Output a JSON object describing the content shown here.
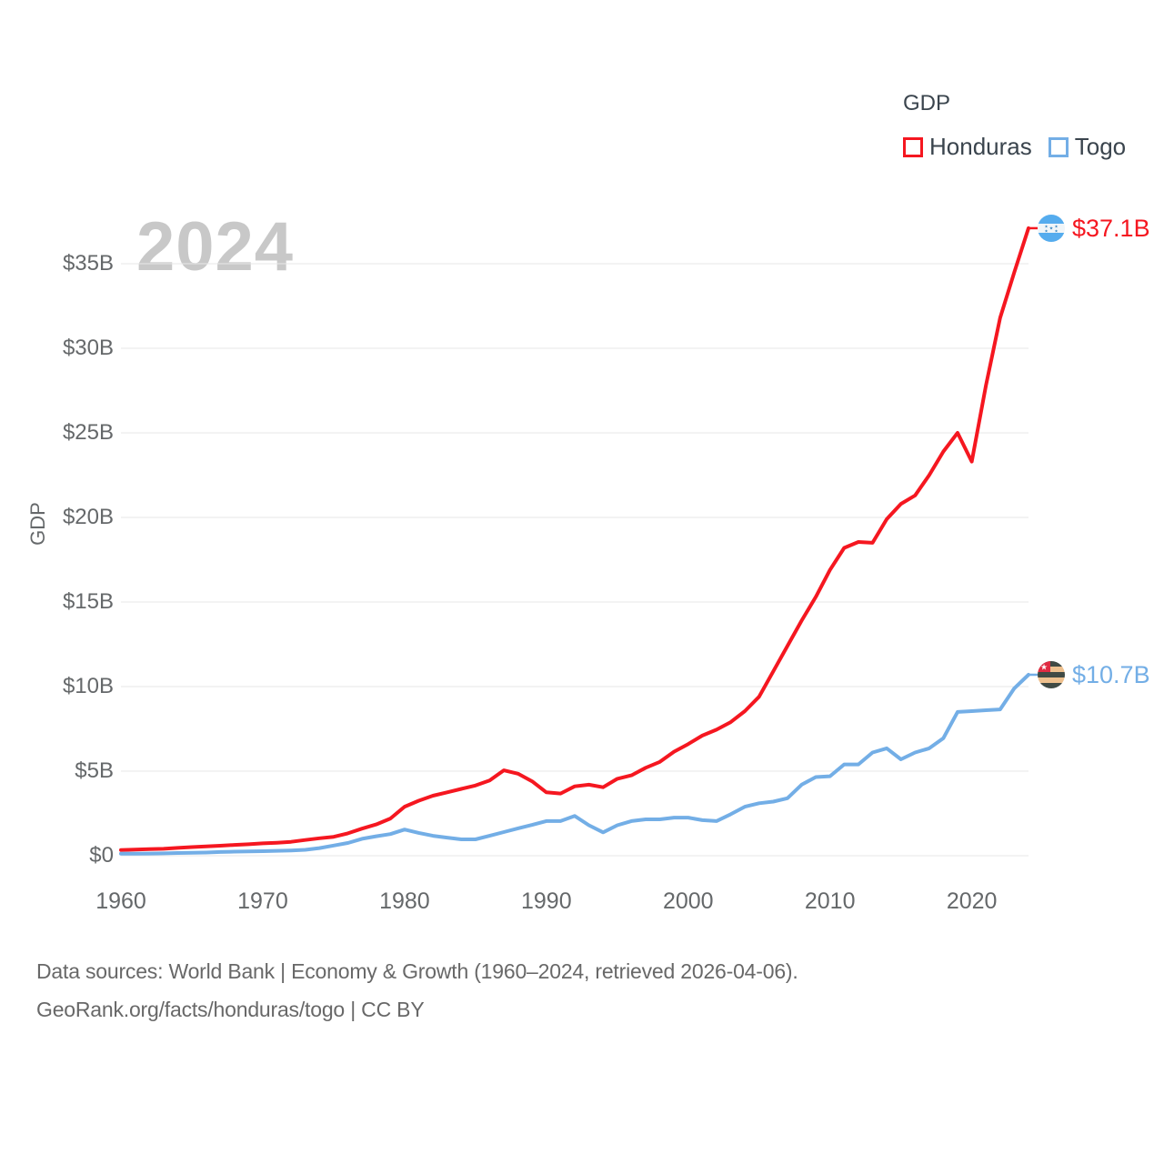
{
  "watermark_year": "2024",
  "legend": {
    "title": "GDP",
    "items": [
      {
        "label": "Honduras",
        "color": "#f51720"
      },
      {
        "label": "Togo",
        "color": "#73aee6"
      }
    ]
  },
  "chart_data": {
    "type": "line",
    "title": "GDP",
    "ylabel": "GDP",
    "xlabel": "",
    "unit": "USD billions",
    "grid": true,
    "legend_position": "top-right",
    "xlim": [
      1960,
      2024
    ],
    "ylim": [
      0,
      35
    ],
    "x_ticks": [
      1960,
      1970,
      1980,
      1990,
      2000,
      2010,
      2020
    ],
    "y_ticks": [
      {
        "value": 0,
        "label": "$0"
      },
      {
        "value": 5,
        "label": "$5B"
      },
      {
        "value": 10,
        "label": "$10B"
      },
      {
        "value": 15,
        "label": "$15B"
      },
      {
        "value": 20,
        "label": "$20B"
      },
      {
        "value": 25,
        "label": "$25B"
      },
      {
        "value": 30,
        "label": "$30B"
      },
      {
        "value": 35,
        "label": "$35B"
      }
    ],
    "years": [
      1960,
      1961,
      1962,
      1963,
      1964,
      1965,
      1966,
      1967,
      1968,
      1969,
      1970,
      1971,
      1972,
      1973,
      1974,
      1975,
      1976,
      1977,
      1978,
      1979,
      1980,
      1981,
      1982,
      1983,
      1984,
      1985,
      1986,
      1987,
      1988,
      1989,
      1990,
      1991,
      1992,
      1993,
      1994,
      1995,
      1996,
      1997,
      1998,
      1999,
      2000,
      2001,
      2002,
      2003,
      2004,
      2005,
      2006,
      2007,
      2008,
      2009,
      2010,
      2011,
      2012,
      2013,
      2014,
      2015,
      2016,
      2017,
      2018,
      2019,
      2020,
      2021,
      2022,
      2023,
      2024
    ],
    "series": [
      {
        "name": "Honduras",
        "color": "#f51720",
        "end_label": "$37.1B",
        "values": [
          0.34,
          0.36,
          0.39,
          0.41,
          0.46,
          0.51,
          0.55,
          0.59,
          0.64,
          0.68,
          0.73,
          0.77,
          0.82,
          0.93,
          1.03,
          1.12,
          1.32,
          1.6,
          1.85,
          2.2,
          2.9,
          3.25,
          3.55,
          3.75,
          3.95,
          4.15,
          4.45,
          5.05,
          4.85,
          4.4,
          3.75,
          3.68,
          4.1,
          4.2,
          4.05,
          4.55,
          4.75,
          5.2,
          5.55,
          6.15,
          6.6,
          7.1,
          7.45,
          7.9,
          8.55,
          9.4,
          10.9,
          12.4,
          13.9,
          15.3,
          16.9,
          18.2,
          18.55,
          18.5,
          19.9,
          20.8,
          21.3,
          22.5,
          23.9,
          25.0,
          23.3,
          27.8,
          31.8,
          34.5,
          37.1
        ]
      },
      {
        "name": "Togo",
        "color": "#73aee6",
        "end_label": "$10.7B",
        "values": [
          0.12,
          0.12,
          0.13,
          0.14,
          0.16,
          0.17,
          0.19,
          0.22,
          0.24,
          0.26,
          0.27,
          0.29,
          0.31,
          0.35,
          0.45,
          0.6,
          0.75,
          1.0,
          1.15,
          1.28,
          1.55,
          1.35,
          1.18,
          1.07,
          0.97,
          0.97,
          1.18,
          1.4,
          1.62,
          1.82,
          2.05,
          2.05,
          2.35,
          1.8,
          1.38,
          1.8,
          2.05,
          2.15,
          2.15,
          2.25,
          2.25,
          2.1,
          2.05,
          2.45,
          2.9,
          3.1,
          3.2,
          3.4,
          4.2,
          4.65,
          4.7,
          5.4,
          5.4,
          6.1,
          6.35,
          5.7,
          6.1,
          6.35,
          6.95,
          8.5,
          8.55,
          8.6,
          8.65,
          9.9,
          10.7
        ]
      }
    ]
  },
  "icons": {
    "honduras_flag": {
      "field": "#f0f5f8",
      "stripe": "#55acee",
      "star": "#3b88c3"
    },
    "togo_flag": {
      "dark_stripe": "#404a44",
      "light_stripe": "#eec08e",
      "canton": "#e02b42",
      "star": "#ffffff"
    }
  },
  "style": {
    "gridline_color": "#e7e7e7",
    "tick_color": "#65686a",
    "watermark_color": "#c8c8c8"
  },
  "footer": {
    "line1": "Data sources: World Bank | Economy & Growth (1960–2024, retrieved 2026-04-06).",
    "line2": "GeoRank.org/facts/honduras/togo | CC BY"
  }
}
